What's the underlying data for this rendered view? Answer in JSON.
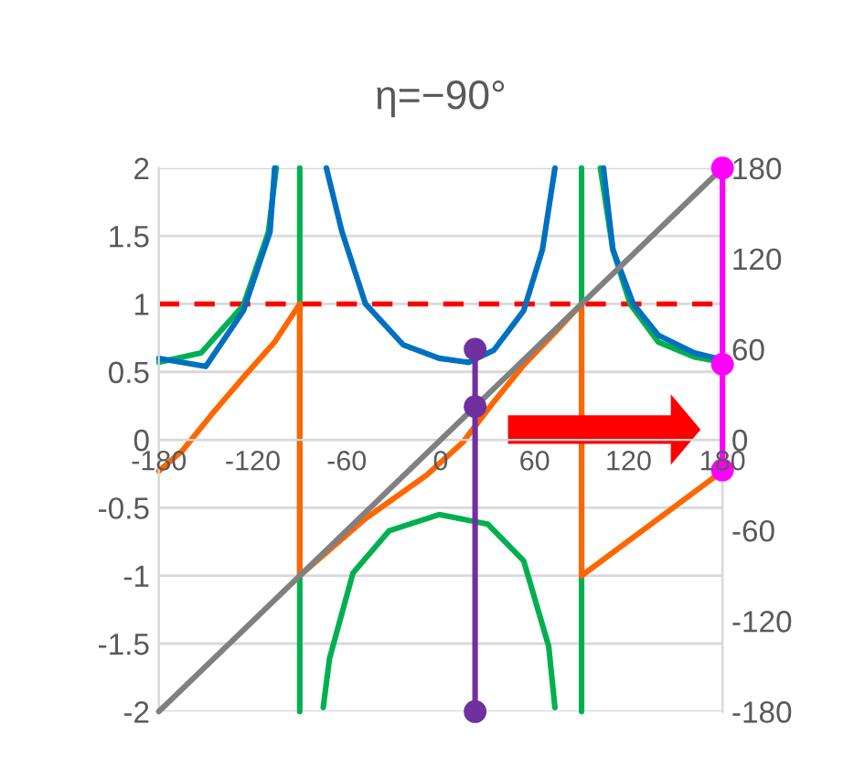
{
  "chart_data": {
    "type": "line",
    "title": "η=−90°",
    "xlim": [
      -180,
      180
    ],
    "xticks": [
      -180,
      -120,
      -60,
      0,
      60,
      120,
      180
    ],
    "ylim": [
      -2,
      2
    ],
    "yticks": [
      -2,
      -1.5,
      -1,
      -0.5,
      0,
      0.5,
      1,
      1.5,
      2
    ],
    "y2lim": [
      -180,
      180
    ],
    "y2ticks": [
      -180,
      -120,
      -60,
      0,
      60,
      120,
      180
    ],
    "grid": "y",
    "ref_lines": [
      {
        "axis": "y",
        "value": 1,
        "color": "#ff0000",
        "line_style": "dashed"
      }
    ],
    "series": [
      {
        "color": "#00b050",
        "marker": "none",
        "x": [
          -180,
          -153,
          -126,
          -110,
          -105,
          -97,
          -90,
          -90,
          -82,
          -75,
          -71,
          -56,
          -33,
          -1,
          30,
          53,
          69,
          73,
          82,
          90,
          90,
          96,
          102,
          110,
          121,
          139,
          162,
          180
        ],
        "values": [
          0.57,
          0.64,
          0.99,
          1.53,
          2,
          null,
          2,
          -2,
          null,
          -1.97,
          -1.61,
          -0.98,
          -0.67,
          -0.55,
          -0.62,
          -0.89,
          -1.52,
          -1.97,
          null,
          -2,
          2,
          null,
          2,
          1.4,
          1.0,
          0.72,
          0.61,
          0.57
        ]
      },
      {
        "color": "#0070c0",
        "marker": "none",
        "x": [
          -180,
          -150,
          -126,
          -109,
          -106,
          -90,
          -73,
          -63,
          -48,
          -24,
          -1,
          18,
          34,
          53,
          65,
          73,
          90,
          104,
          110,
          123,
          139,
          162,
          180
        ],
        "values": [
          0.6,
          0.54,
          0.95,
          1.53,
          2,
          null,
          2,
          1.53,
          1.0,
          0.7,
          0.6,
          0.57,
          0.66,
          0.95,
          1.4,
          2,
          null,
          2,
          1.4,
          1.0,
          0.77,
          0.64,
          0.59
        ]
      },
      {
        "color": "#ff6600",
        "marker": "none",
        "x": [
          -180,
          -165,
          -146,
          -126,
          -106,
          -90,
          -90,
          -48,
          -9,
          14,
          34,
          53,
          73,
          90,
          90,
          166,
          180
        ],
        "values": [
          -0.23,
          -0.08,
          0.19,
          0.46,
          0.72,
          1,
          -1,
          -0.58,
          -0.26,
          -0.02,
          0.28,
          0.55,
          0.79,
          1,
          -1,
          -0.35,
          -0.23
        ]
      },
      {
        "color": "#808080",
        "marker": "none",
        "axis": "y2",
        "x": [
          -180,
          180
        ],
        "values": [
          -180,
          180
        ]
      },
      {
        "color": "#7030a0",
        "marker": "circle",
        "axis": "y2",
        "x": [
          22,
          22,
          22
        ],
        "values": [
          -180,
          22,
          60
        ]
      },
      {
        "color": "#ff00ff",
        "marker": "circle",
        "axis": "y2",
        "x": [
          180,
          180,
          180
        ],
        "values": [
          180,
          50,
          -20
        ]
      }
    ]
  }
}
